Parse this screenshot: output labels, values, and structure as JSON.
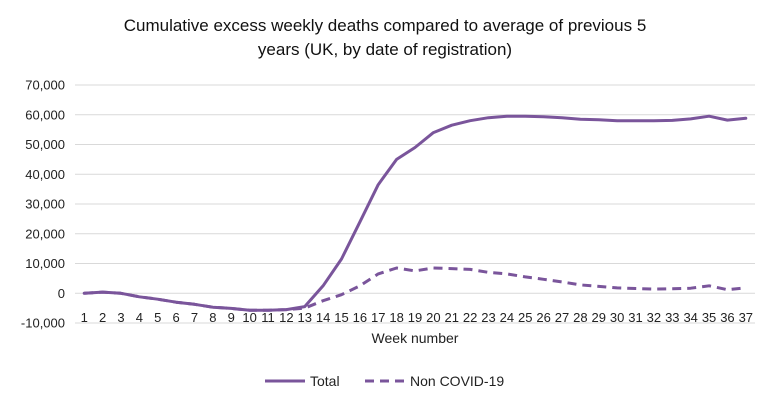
{
  "chart_data": {
    "type": "line",
    "title_line1": "Cumulative excess weekly deaths compared to average of previous 5",
    "title_line2": "years (UK, by date of registration)",
    "xlabel": "Week number",
    "ylabel": "",
    "x": [
      1,
      2,
      3,
      4,
      5,
      6,
      7,
      8,
      9,
      10,
      11,
      12,
      13,
      14,
      15,
      16,
      17,
      18,
      19,
      20,
      21,
      22,
      23,
      24,
      25,
      26,
      27,
      28,
      29,
      30,
      31,
      32,
      33,
      34,
      35,
      36,
      37
    ],
    "ylim": [
      -10000,
      70000
    ],
    "yticks": [
      -10000,
      0,
      10000,
      20000,
      30000,
      40000,
      50000,
      60000,
      70000
    ],
    "ytick_labels": [
      "-10,000",
      "0",
      "10,000",
      "20,000",
      "30,000",
      "40,000",
      "50,000",
      "60,000",
      "70,000"
    ],
    "grid": "horizontal",
    "legend_position": "bottom",
    "series": [
      {
        "name": "Total",
        "color": "#7a559b",
        "style": "solid",
        "values": [
          0,
          400,
          0,
          -1200,
          -2000,
          -3000,
          -3700,
          -4700,
          -5100,
          -5700,
          -5700,
          -5500,
          -4500,
          2500,
          11500,
          24000,
          36500,
          45000,
          49000,
          54000,
          56500,
          58000,
          59000,
          59500,
          59500,
          59300,
          59000,
          58500,
          58300,
          58000,
          58000,
          58000,
          58100,
          58600,
          59500,
          58200,
          58800
        ]
      },
      {
        "name": "Non COVID-19",
        "color": "#7a559b",
        "style": "dashed",
        "values": [
          0,
          400,
          0,
          -1200,
          -2000,
          -3000,
          -3700,
          -4700,
          -5100,
          -5700,
          -5700,
          -5500,
          -5000,
          -2500,
          -500,
          2500,
          6500,
          8500,
          7500,
          8500,
          8300,
          8000,
          7000,
          6500,
          5500,
          4700,
          3800,
          2800,
          2300,
          1800,
          1600,
          1400,
          1500,
          1700,
          2500,
          1200,
          1800
        ]
      }
    ]
  }
}
